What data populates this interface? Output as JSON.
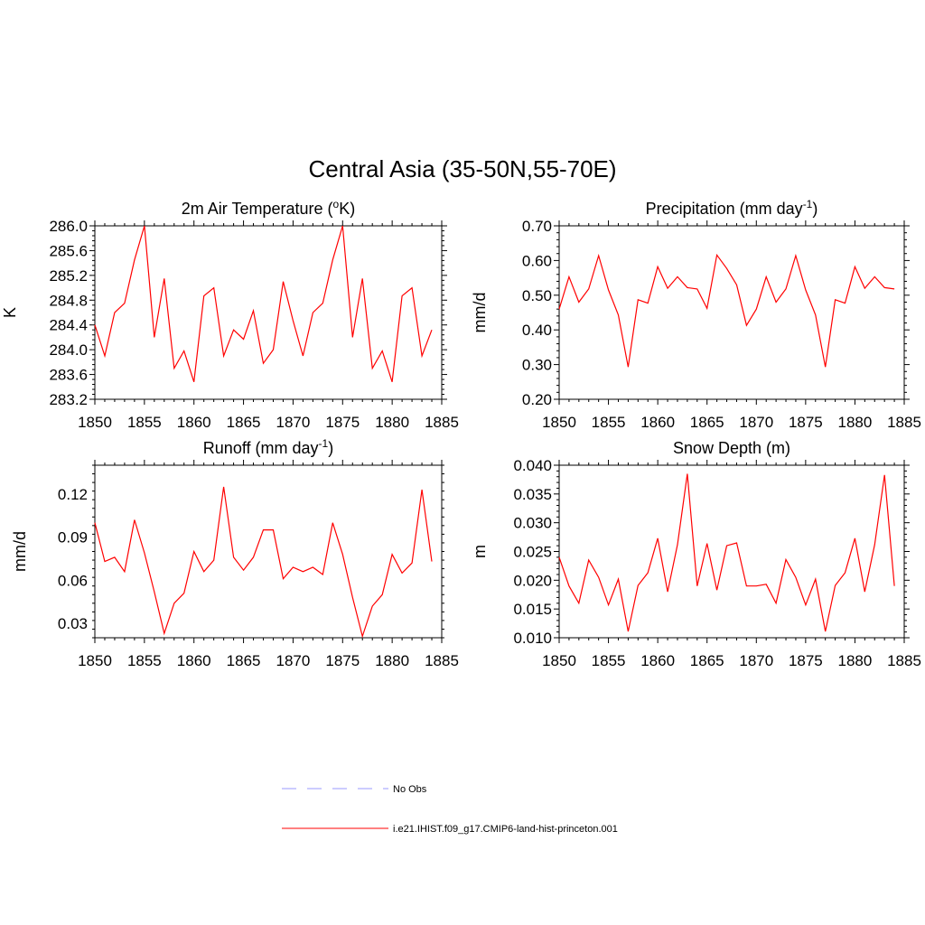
{
  "figure": {
    "title": "Central Asia (35-50N,55-70E)"
  },
  "legend": {
    "entries": [
      {
        "label": "No Obs",
        "color": "#9999ff",
        "style": "dashed"
      },
      {
        "label": "i.e21.IHIST.f09_g17.CMIP6-land-hist-princeton.001",
        "color": "#ff0000",
        "style": "solid"
      }
    ]
  },
  "chart_data": [
    {
      "type": "line",
      "title": "2m Air Temperature (°K)",
      "title_main": "2m Air Temperature (",
      "title_sup": "o",
      "title_end": "K)",
      "ylabel": "K",
      "xlim": [
        1850,
        1885
      ],
      "ylim": [
        283.2,
        286.0
      ],
      "xticks": [
        1850,
        1855,
        1860,
        1865,
        1870,
        1875,
        1880,
        1885
      ],
      "yticks": [
        283.2,
        283.6,
        284.0,
        284.4,
        284.8,
        285.2,
        285.6,
        286.0
      ],
      "ytick_labels": [
        "283.2",
        "283.6",
        "284.0",
        "284.4",
        "284.8",
        "285.2",
        "285.6",
        "286.0"
      ],
      "series": [
        {
          "color": "#ff0000",
          "x": [
            1850,
            1851,
            1852,
            1853,
            1854,
            1855,
            1856,
            1857,
            1858,
            1859,
            1860,
            1861,
            1862,
            1863,
            1864,
            1865,
            1866,
            1867,
            1868,
            1869,
            1870,
            1871,
            1872,
            1873,
            1874,
            1875,
            1876,
            1877,
            1878,
            1879,
            1880,
            1881,
            1882,
            1883,
            1884
          ],
          "values": [
            284.4,
            283.9,
            284.6,
            284.75,
            285.45,
            286.0,
            284.2,
            285.15,
            283.7,
            283.98,
            283.48,
            284.87,
            285.0,
            283.9,
            284.32,
            284.17,
            284.63,
            283.78,
            284.0,
            285.1,
            284.47,
            283.9,
            284.6,
            284.75,
            285.45,
            286.0,
            284.2,
            285.15,
            283.7,
            283.98,
            283.48,
            284.87,
            285.0,
            283.9,
            284.32
          ]
        }
      ]
    },
    {
      "type": "line",
      "title": "Precipitation (mm day-1)",
      "title_main": "Precipitation (mm day",
      "title_sup": "-1",
      "title_end": ")",
      "ylabel": "mm/d",
      "xlim": [
        1850,
        1885
      ],
      "ylim": [
        0.2,
        0.7
      ],
      "xticks": [
        1850,
        1855,
        1860,
        1865,
        1870,
        1875,
        1880,
        1885
      ],
      "yticks": [
        0.2,
        0.3,
        0.4,
        0.5,
        0.6,
        0.7
      ],
      "ytick_labels": [
        "0.20",
        "0.30",
        "0.40",
        "0.50",
        "0.60",
        "0.70"
      ],
      "series": [
        {
          "color": "#ff0000",
          "x": [
            1850,
            1851,
            1852,
            1853,
            1854,
            1855,
            1856,
            1857,
            1858,
            1859,
            1860,
            1861,
            1862,
            1863,
            1864,
            1865,
            1866,
            1867,
            1868,
            1869,
            1870,
            1871,
            1872,
            1873,
            1874,
            1875,
            1876,
            1877,
            1878,
            1879,
            1880,
            1881,
            1882,
            1883,
            1884
          ],
          "values": [
            0.46,
            0.553,
            0.48,
            0.518,
            0.614,
            0.515,
            0.443,
            0.293,
            0.487,
            0.477,
            0.582,
            0.52,
            0.553,
            0.522,
            0.518,
            0.462,
            0.616,
            0.577,
            0.53,
            0.413,
            0.46,
            0.553,
            0.48,
            0.518,
            0.614,
            0.515,
            0.443,
            0.293,
            0.487,
            0.477,
            0.582,
            0.52,
            0.553,
            0.522,
            0.518
          ]
        }
      ]
    },
    {
      "type": "line",
      "title": "Runoff (mm day-1)",
      "title_main": "Runoff (mm day",
      "title_sup": "-1",
      "title_end": ")",
      "ylabel": "mm/d",
      "xlim": [
        1850,
        1885
      ],
      "ylim": [
        0.02,
        0.14
      ],
      "xticks": [
        1850,
        1855,
        1860,
        1865,
        1870,
        1875,
        1880,
        1885
      ],
      "yticks": [
        0.03,
        0.06,
        0.09,
        0.12
      ],
      "ytick_labels": [
        "0.03",
        "0.06",
        "0.09",
        "0.12"
      ],
      "series": [
        {
          "color": "#ff0000",
          "x": [
            1850,
            1851,
            1852,
            1853,
            1854,
            1855,
            1856,
            1857,
            1858,
            1859,
            1860,
            1861,
            1862,
            1863,
            1864,
            1865,
            1866,
            1867,
            1868,
            1869,
            1870,
            1871,
            1872,
            1873,
            1874,
            1875,
            1876,
            1877,
            1878,
            1879,
            1880,
            1881,
            1882,
            1883,
            1884
          ],
          "values": [
            0.1,
            0.073,
            0.076,
            0.066,
            0.102,
            0.079,
            0.052,
            0.023,
            0.044,
            0.051,
            0.08,
            0.066,
            0.074,
            0.125,
            0.076,
            0.067,
            0.076,
            0.095,
            0.095,
            0.061,
            0.069,
            0.066,
            0.069,
            0.064,
            0.1,
            0.078,
            0.048,
            0.021,
            0.042,
            0.05,
            0.078,
            0.065,
            0.072,
            0.123,
            0.073
          ]
        }
      ]
    },
    {
      "type": "line",
      "title": "Snow Depth (m)",
      "title_main": "Snow Depth (m)",
      "title_sup": "",
      "title_end": "",
      "ylabel": "m",
      "xlim": [
        1850,
        1885
      ],
      "ylim": [
        0.01,
        0.04
      ],
      "xticks": [
        1850,
        1855,
        1860,
        1865,
        1870,
        1875,
        1880,
        1885
      ],
      "yticks": [
        0.01,
        0.015,
        0.02,
        0.025,
        0.03,
        0.035,
        0.04
      ],
      "ytick_labels": [
        "0.010",
        "0.015",
        "0.020",
        "0.025",
        "0.030",
        "0.035",
        "0.040"
      ],
      "series": [
        {
          "color": "#ff0000",
          "x": [
            1850,
            1851,
            1852,
            1853,
            1854,
            1855,
            1856,
            1857,
            1858,
            1859,
            1860,
            1861,
            1862,
            1863,
            1864,
            1865,
            1866,
            1867,
            1868,
            1869,
            1870,
            1871,
            1872,
            1873,
            1874,
            1875,
            1876,
            1877,
            1878,
            1879,
            1880,
            1881,
            1882,
            1883,
            1884
          ],
          "values": [
            0.024,
            0.019,
            0.016,
            0.0235,
            0.0205,
            0.0157,
            0.0202,
            0.0111,
            0.0191,
            0.0213,
            0.0273,
            0.018,
            0.0262,
            0.0385,
            0.019,
            0.0264,
            0.0183,
            0.026,
            0.0265,
            0.019,
            0.019,
            0.0193,
            0.016,
            0.0236,
            0.0205,
            0.0157,
            0.0202,
            0.0111,
            0.0191,
            0.0213,
            0.0273,
            0.018,
            0.0262,
            0.0383,
            0.019
          ]
        }
      ]
    }
  ]
}
